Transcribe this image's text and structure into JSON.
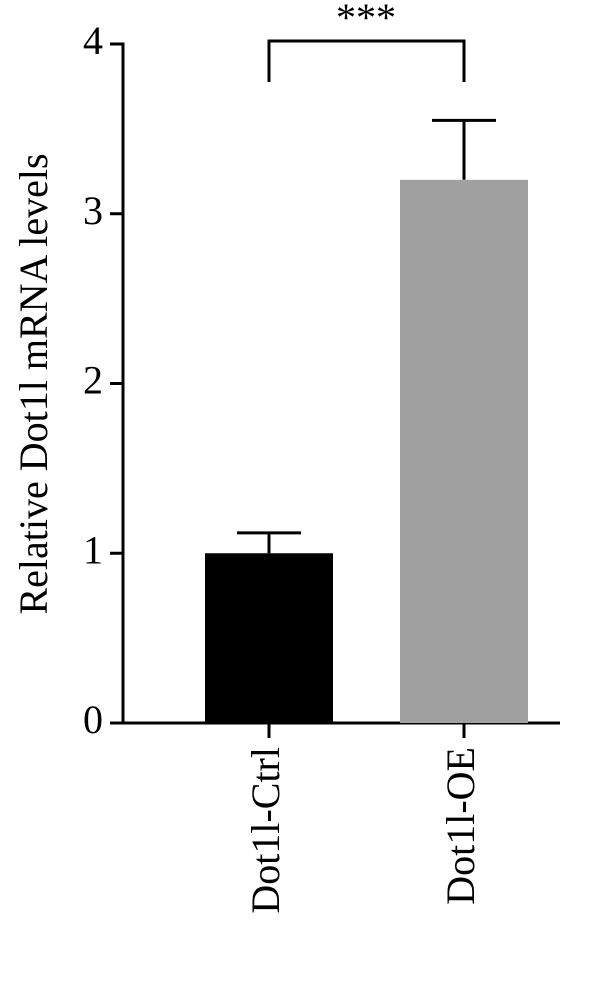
{
  "chart_data": {
    "type": "bar",
    "y_label": "Relative Dot1l mRNA levels",
    "categories": [
      "Dot1l-Ctrl",
      "Dot1l-OE"
    ],
    "values": [
      1.0,
      3.2
    ],
    "errors": [
      0.12,
      0.35
    ],
    "colors": [
      "#000000",
      "#a0a0a0"
    ],
    "annotation": "***",
    "ylim": [
      0,
      4
    ],
    "yticks": [
      0,
      1,
      2,
      3,
      4
    ]
  }
}
